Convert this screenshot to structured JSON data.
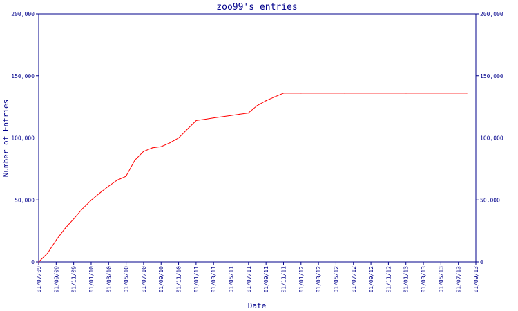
{
  "chart_data": {
    "type": "line",
    "title": "zoo99's entries",
    "xlabel": "Date",
    "ylabel": "Number of Entries",
    "ylim": [
      0,
      200000
    ],
    "yticks": [
      0,
      50000,
      100000,
      150000,
      200000
    ],
    "ytick_labels": [
      "0",
      "50,000",
      "100,000",
      "150,000",
      "200,000"
    ],
    "xlim": [
      "2009-07-01",
      "2013-09-01"
    ],
    "xtick_labels": [
      "01/07/09",
      "01/09/09",
      "01/11/09",
      "01/01/10",
      "01/03/10",
      "01/05/10",
      "01/07/10",
      "01/09/10",
      "01/11/10",
      "01/01/11",
      "01/03/11",
      "01/05/11",
      "01/07/11",
      "01/09/11",
      "01/11/11",
      "01/01/12",
      "01/03/12",
      "01/05/12",
      "01/07/12",
      "01/09/12",
      "01/11/12",
      "01/01/13",
      "01/03/13",
      "01/05/13",
      "01/07/13",
      "01/09/13"
    ],
    "grid": false,
    "series": [
      {
        "color": "#ff0000",
        "x": [
          "2009-07-01",
          "2009-08-01",
          "2009-09-01",
          "2009-10-01",
          "2009-11-01",
          "2009-12-01",
          "2010-01-01",
          "2010-02-01",
          "2010-03-01",
          "2010-04-01",
          "2010-05-01",
          "2010-06-01",
          "2010-07-01",
          "2010-08-01",
          "2010-09-01",
          "2010-10-01",
          "2010-11-01",
          "2010-12-01",
          "2011-01-01",
          "2011-02-01",
          "2011-03-01",
          "2011-04-01",
          "2011-05-01",
          "2011-06-01",
          "2011-07-01",
          "2011-08-01",
          "2011-09-01",
          "2011-10-01",
          "2011-11-01",
          "2012-01-01",
          "2012-06-01",
          "2013-01-01",
          "2013-08-01"
        ],
        "y": [
          0,
          7000,
          18000,
          27000,
          35000,
          43000,
          50000,
          56000,
          61000,
          66000,
          69000,
          82000,
          89000,
          92000,
          93000,
          96000,
          100000,
          107000,
          114000,
          115000,
          116000,
          117000,
          118000,
          119000,
          120000,
          126000,
          130000,
          133000,
          136000,
          136000,
          136000,
          136000,
          136000
        ]
      }
    ]
  },
  "colors": {
    "axis": "#00008b",
    "line": "#ff0000",
    "background": "#ffffff"
  }
}
